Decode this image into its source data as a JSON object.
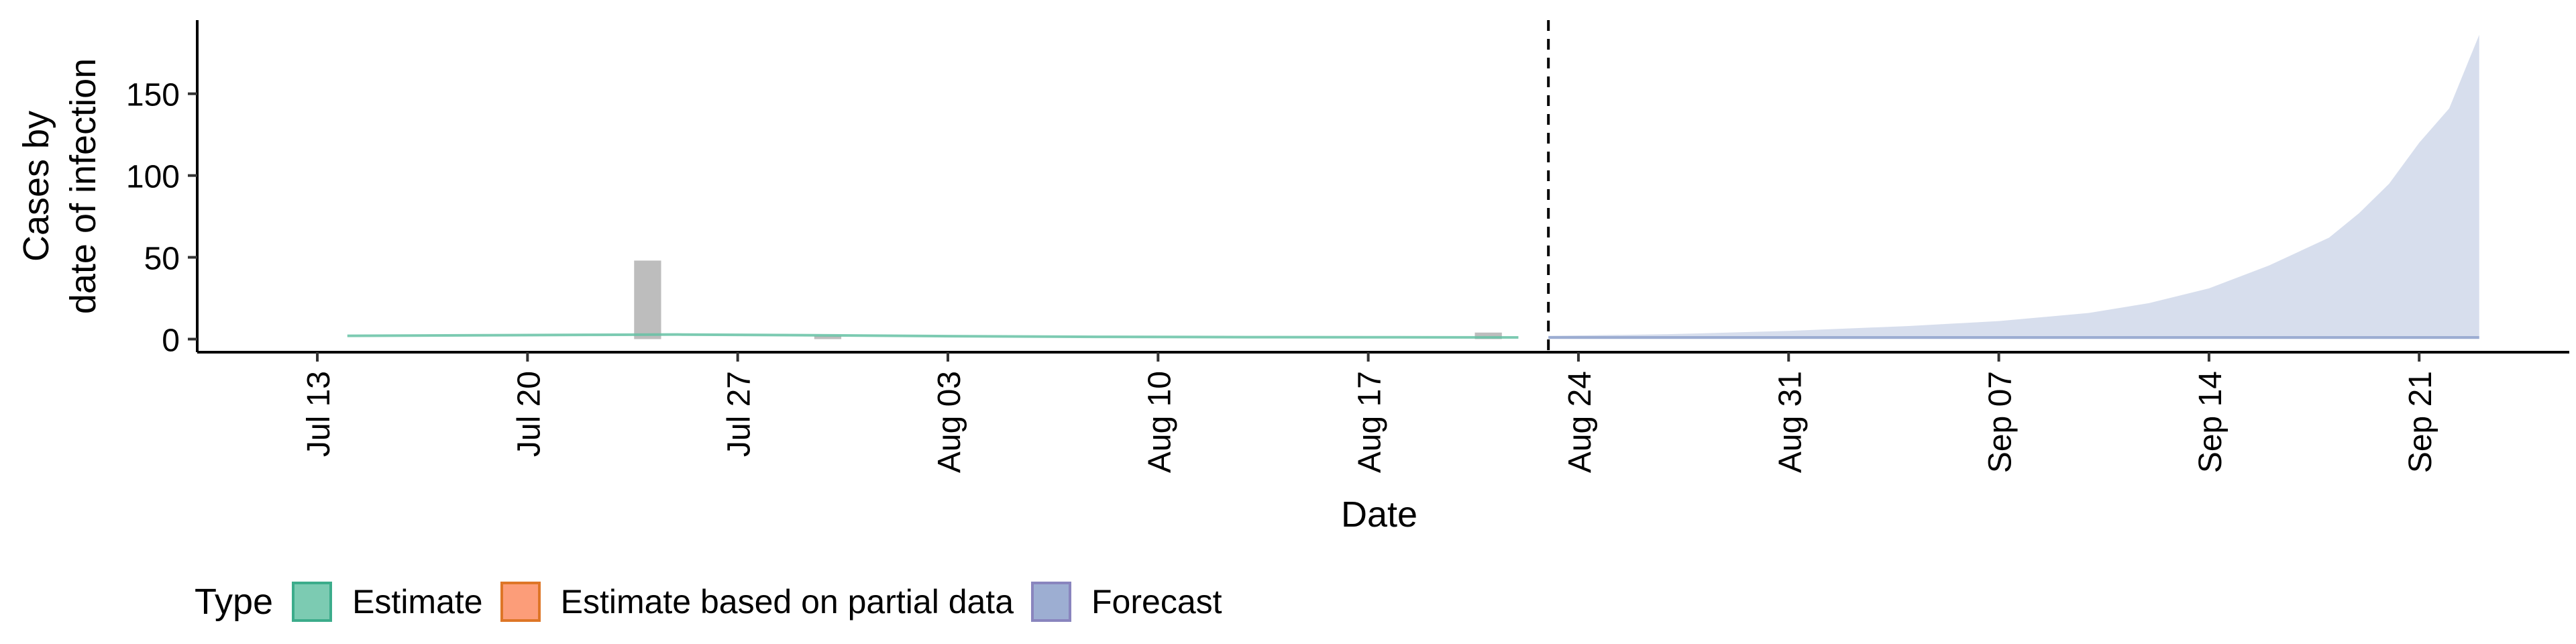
{
  "chart_data": {
    "type": "area",
    "xlabel": "Date",
    "ylabel_lines": [
      "Cases by",
      "date of infection"
    ],
    "x_range": [
      "2020-07-09",
      "2020-09-26"
    ],
    "y_range": [
      -8,
      195
    ],
    "y_ticks": [
      0,
      50,
      100,
      150
    ],
    "x_ticks": [
      {
        "date": "2020-07-13",
        "label": "Jul 13"
      },
      {
        "date": "2020-07-20",
        "label": "Jul 20"
      },
      {
        "date": "2020-07-27",
        "label": "Jul 27"
      },
      {
        "date": "2020-08-03",
        "label": "Aug 03"
      },
      {
        "date": "2020-08-10",
        "label": "Aug 10"
      },
      {
        "date": "2020-08-17",
        "label": "Aug 17"
      },
      {
        "date": "2020-08-24",
        "label": "Aug 24"
      },
      {
        "date": "2020-08-31",
        "label": "Aug 31"
      },
      {
        "date": "2020-09-07",
        "label": "Sep 07"
      },
      {
        "date": "2020-09-14",
        "label": "Sep 14"
      },
      {
        "date": "2020-09-21",
        "label": "Sep 21"
      }
    ],
    "forecast_start": "2020-08-23",
    "reported_cases": [
      {
        "date": "2020-07-24",
        "value": 48
      },
      {
        "date": "2020-07-30",
        "value": 2
      },
      {
        "date": "2020-08-21",
        "value": 4
      }
    ],
    "series": [
      {
        "name": "Estimate",
        "color": "#1b9e77",
        "fill": "#66c2a5",
        "points": [
          {
            "date": "2020-07-14",
            "median": 2,
            "lower": 1.5,
            "upper": 2.5
          },
          {
            "date": "2020-07-18",
            "median": 2.3,
            "lower": 1.8,
            "upper": 2.8
          },
          {
            "date": "2020-07-22",
            "median": 2.6,
            "lower": 2.0,
            "upper": 3.2
          },
          {
            "date": "2020-07-25",
            "median": 2.8,
            "lower": 2.1,
            "upper": 3.4
          },
          {
            "date": "2020-07-29",
            "median": 2.4,
            "lower": 1.8,
            "upper": 3.0
          },
          {
            "date": "2020-08-03",
            "median": 1.8,
            "lower": 1.3,
            "upper": 2.3
          },
          {
            "date": "2020-08-08",
            "median": 1.4,
            "lower": 1.0,
            "upper": 1.8
          },
          {
            "date": "2020-08-13",
            "median": 1.2,
            "lower": 0.8,
            "upper": 1.6
          },
          {
            "date": "2020-08-18",
            "median": 1.1,
            "lower": 0.7,
            "upper": 1.5
          },
          {
            "date": "2020-08-22",
            "median": 1.0,
            "lower": 0.6,
            "upper": 1.4
          }
        ]
      },
      {
        "name": "Estimate based on partial data",
        "color": "#d95f02",
        "fill": "#fc8d62",
        "points": []
      },
      {
        "name": "Forecast",
        "color": "#7570b3",
        "fill": "#8da0cb",
        "points": [
          {
            "date": "2020-08-23",
            "median": 1,
            "lower": 0,
            "upper": 2
          },
          {
            "date": "2020-08-27",
            "median": 1,
            "lower": 0,
            "upper": 3
          },
          {
            "date": "2020-08-31",
            "median": 1,
            "lower": 0,
            "upper": 5
          },
          {
            "date": "2020-09-04",
            "median": 1,
            "lower": 0,
            "upper": 8
          },
          {
            "date": "2020-09-07",
            "median": 1,
            "lower": 0,
            "upper": 11
          },
          {
            "date": "2020-09-10",
            "median": 1,
            "lower": 0,
            "upper": 16
          },
          {
            "date": "2020-09-12",
            "median": 1,
            "lower": 0,
            "upper": 22
          },
          {
            "date": "2020-09-14",
            "median": 1,
            "lower": 0,
            "upper": 31
          },
          {
            "date": "2020-09-16",
            "median": 1,
            "lower": 0,
            "upper": 45
          },
          {
            "date": "2020-09-18",
            "median": 1,
            "lower": 0,
            "upper": 62
          },
          {
            "date": "2020-09-19",
            "median": 1,
            "lower": 0,
            "upper": 77
          },
          {
            "date": "2020-09-20",
            "median": 1,
            "lower": 0,
            "upper": 95
          },
          {
            "date": "2020-09-21",
            "median": 1,
            "lower": 0,
            "upper": 120
          },
          {
            "date": "2020-09-22",
            "median": 1,
            "lower": 0,
            "upper": 141
          },
          {
            "date": "2020-09-23",
            "median": 1,
            "lower": 0,
            "upper": 186
          }
        ]
      }
    ],
    "legend": {
      "title": "Type",
      "position": "bottom",
      "items": [
        {
          "label": "Estimate",
          "fill": "#66c2a5",
          "border": "#1b9e77"
        },
        {
          "label": "Estimate based on partial data",
          "fill": "#fc8d62",
          "border": "#d95f02"
        },
        {
          "label": "Forecast",
          "fill": "#8da0cb",
          "border": "#7570b3"
        }
      ]
    },
    "grid": false
  }
}
